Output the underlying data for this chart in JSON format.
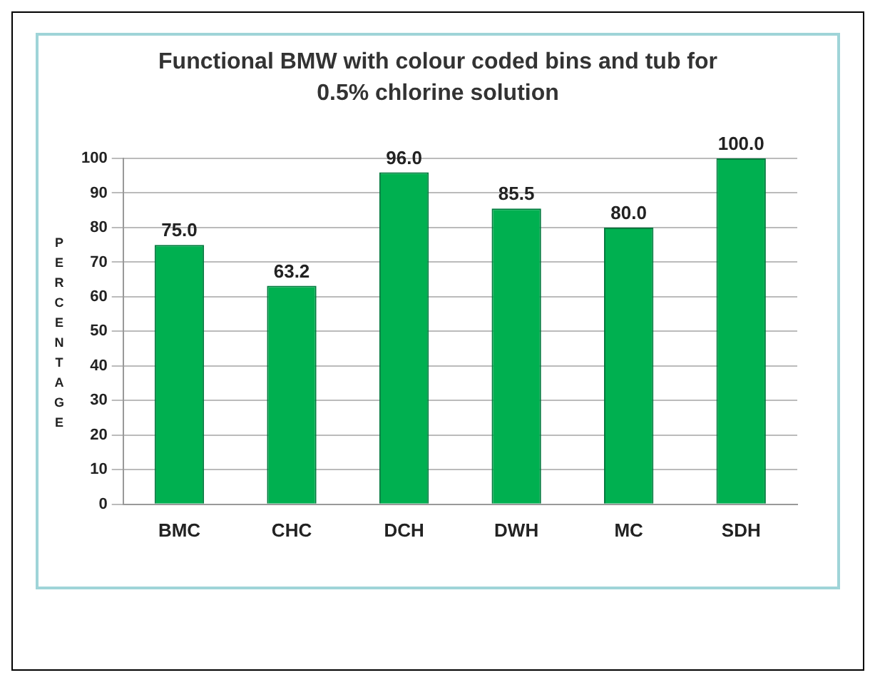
{
  "chart_data": {
    "type": "bar",
    "title": "Functional BMW  with colour coded bins and tub for 0.5% chlorine solution",
    "ylabel": "PERCENTAGE",
    "categories": [
      "BMC",
      "CHC",
      "DCH",
      "DWH",
      "MC",
      "SDH"
    ],
    "values": [
      75,
      63.2,
      96,
      85.5,
      80,
      100
    ],
    "color": "#00b050",
    "value_labels": [
      "75.0",
      "63.2",
      "96.0",
      "85.5",
      "80.0",
      "100.0"
    ],
    "ylim": [
      0,
      100
    ],
    "yticks": [
      0,
      10,
      20,
      30,
      40,
      50,
      60,
      70,
      80,
      90,
      100
    ],
    "grid": "y",
    "legend": false
  }
}
